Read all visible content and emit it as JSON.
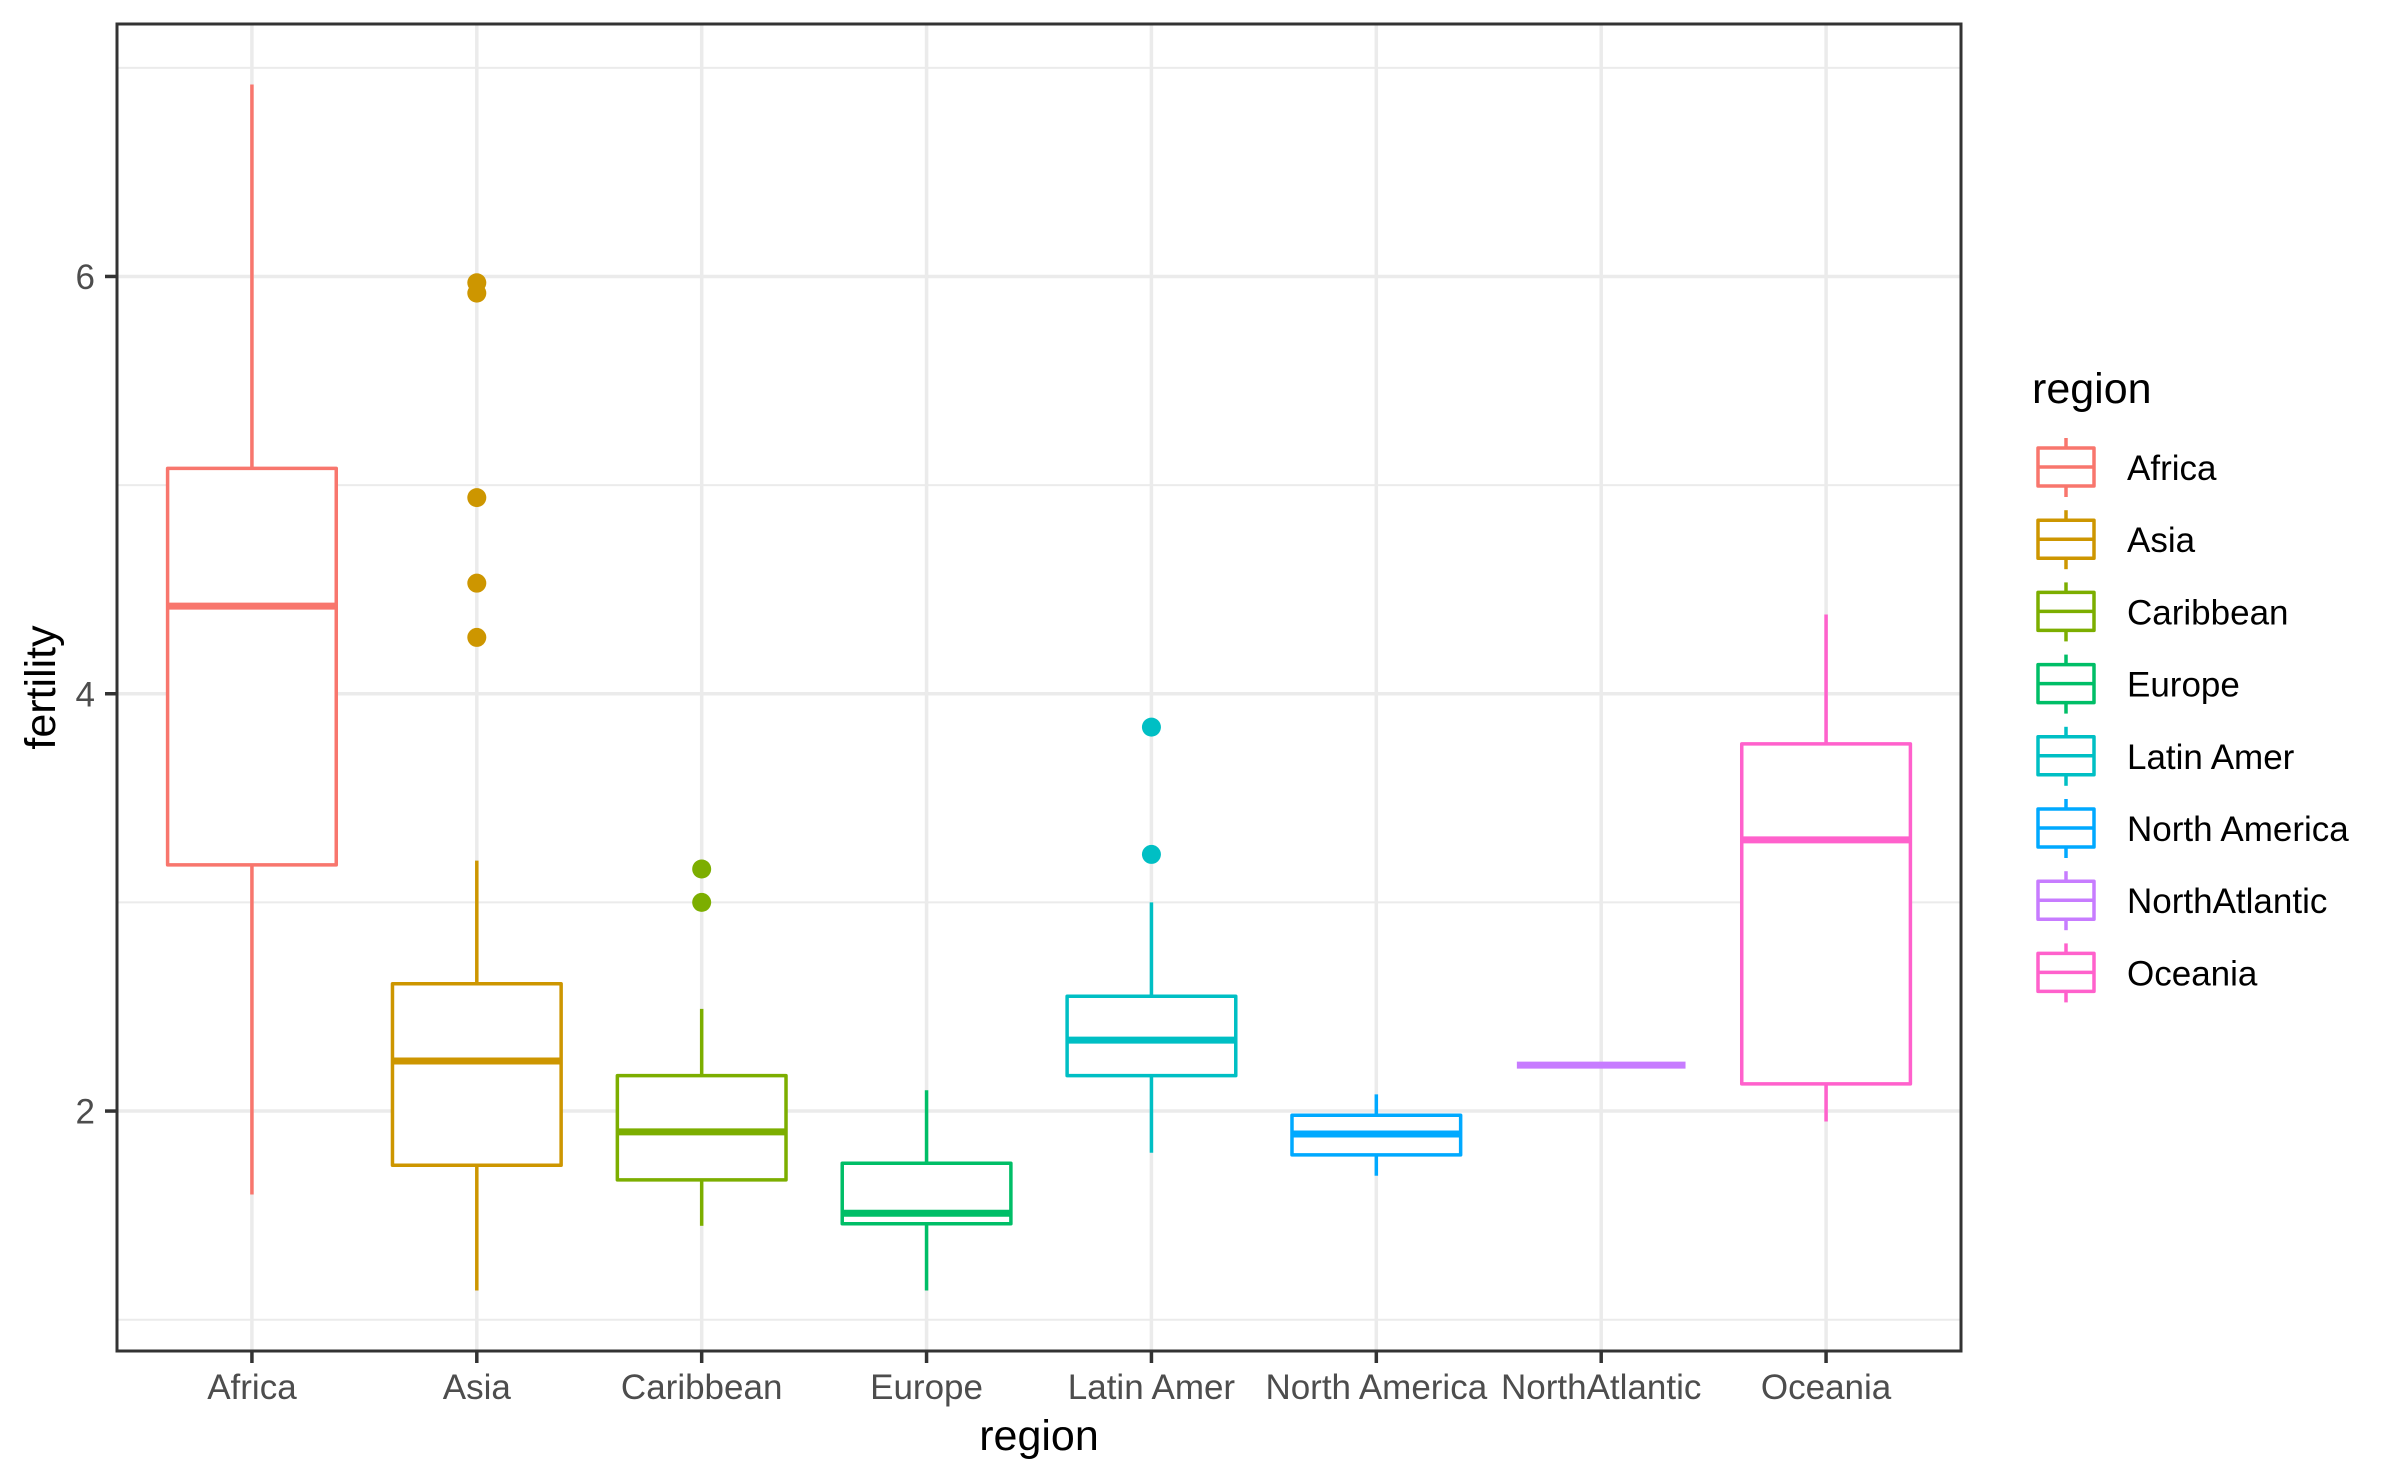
{
  "chart_data": {
    "type": "boxplot",
    "title": "",
    "xlabel": "region",
    "ylabel": "fertility",
    "ylim": [
      0.85,
      7.21
    ],
    "yticks": [
      2,
      4,
      6
    ],
    "ytick_labels": [
      "2",
      "4",
      "6"
    ],
    "minor_gridlines_y": [
      1,
      3,
      5,
      7
    ],
    "grid": true,
    "theme": "bw",
    "legend": {
      "title": "region",
      "placement": "right"
    },
    "categories": [
      "Africa",
      "Asia",
      "Caribbean",
      "Europe",
      "Latin Amer",
      "North America",
      "NorthAtlantic",
      "Oceania"
    ],
    "series": [
      {
        "name": "Africa",
        "color": "#F8766D",
        "whisker_low": 1.6,
        "q1": 3.18,
        "median": 4.42,
        "q3": 5.08,
        "whisker_high": 6.92,
        "outliers": []
      },
      {
        "name": "Asia",
        "color": "#CD9600",
        "whisker_low": 1.14,
        "q1": 1.74,
        "median": 2.24,
        "q3": 2.61,
        "whisker_high": 3.2,
        "outliers": [
          5.97,
          5.92,
          4.94,
          4.53,
          4.27
        ]
      },
      {
        "name": "Caribbean",
        "color": "#7CAE00",
        "whisker_low": 1.45,
        "q1": 1.67,
        "median": 1.9,
        "q3": 2.17,
        "whisker_high": 2.49,
        "outliers": [
          3.16,
          3.0
        ]
      },
      {
        "name": "Europe",
        "color": "#00BE67",
        "whisker_low": 1.14,
        "q1": 1.46,
        "median": 1.51,
        "q3": 1.75,
        "whisker_high": 2.1,
        "outliers": []
      },
      {
        "name": "Latin Amer",
        "color": "#00BFC4",
        "whisker_low": 1.8,
        "q1": 2.17,
        "median": 2.34,
        "q3": 2.55,
        "whisker_high": 3.0,
        "outliers": [
          3.84,
          3.23
        ]
      },
      {
        "name": "North America",
        "color": "#00A9FF",
        "whisker_low": 1.69,
        "q1": 1.79,
        "median": 1.89,
        "q3": 1.98,
        "whisker_high": 2.08,
        "outliers": []
      },
      {
        "name": "NorthAtlantic",
        "color": "#C77CFF",
        "whisker_low": 2.22,
        "q1": 2.22,
        "median": 2.22,
        "q3": 2.22,
        "whisker_high": 2.22,
        "outliers": []
      },
      {
        "name": "Oceania",
        "color": "#FF61CC",
        "whisker_low": 1.95,
        "q1": 2.13,
        "median": 3.3,
        "q3": 3.76,
        "whisker_high": 4.38,
        "outliers": []
      }
    ]
  },
  "colors": {
    "panel_border": "#333333",
    "grid": "#EBEBEB",
    "tick_text": "#4D4D4D",
    "title_text": "#000000"
  }
}
